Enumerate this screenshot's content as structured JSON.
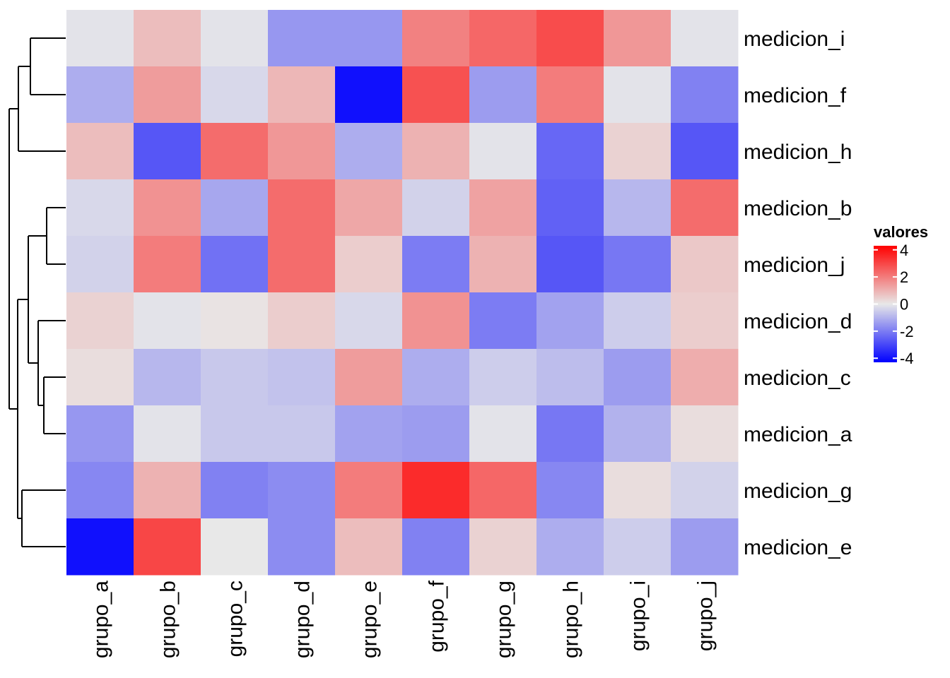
{
  "chart_data": {
    "type": "heatmap",
    "title": "",
    "xlabel": "",
    "ylabel": "",
    "columns": [
      "grupo_a",
      "grupo_b",
      "grupo_c",
      "grupo_d",
      "grupo_e",
      "grupo_f",
      "grupo_g",
      "grupo_h",
      "grupo_i",
      "grupo_j"
    ],
    "rows": [
      "medicion_i",
      "medicion_f",
      "medicion_h",
      "medicion_b",
      "medicion_j",
      "medicion_d",
      "medicion_c",
      "medicion_a",
      "medicion_g",
      "medicion_e"
    ],
    "values": [
      [
        -0.1,
        0.8,
        -0.1,
        -1.5,
        -1.5,
        1.9,
        2.4,
        2.9,
        1.5,
        -0.1
      ],
      [
        -1.1,
        1.4,
        -0.3,
        0.9,
        -4.0,
        2.8,
        -1.4,
        2.0,
        -0.1,
        -1.9
      ],
      [
        0.8,
        -2.7,
        2.3,
        1.5,
        -1.1,
        1.0,
        -0.1,
        -2.4,
        0.4,
        -2.7
      ],
      [
        -0.3,
        1.6,
        -1.2,
        2.3,
        1.2,
        -0.4,
        1.3,
        -2.5,
        -0.9,
        2.3
      ],
      [
        -0.4,
        2.0,
        -2.2,
        2.3,
        0.5,
        -2.0,
        1.0,
        -2.7,
        -2.1,
        0.6
      ],
      [
        0.4,
        -0.1,
        0.1,
        0.5,
        -0.3,
        1.6,
        -2.0,
        -1.3,
        -0.5,
        0.5
      ],
      [
        0.2,
        -0.9,
        -0.6,
        -0.7,
        1.4,
        -1.1,
        -0.5,
        -0.8,
        -1.4,
        1.1
      ],
      [
        -1.5,
        -0.1,
        -0.6,
        -0.6,
        -1.3,
        -1.4,
        -0.1,
        -2.1,
        -1.0,
        0.2
      ],
      [
        -1.8,
        1.0,
        -1.9,
        -1.7,
        2.0,
        3.5,
        2.4,
        -1.8,
        0.2,
        -0.4
      ],
      [
        -4.0,
        3.0,
        0.0,
        -1.7,
        0.8,
        -1.9,
        0.4,
        -1.1,
        -0.5,
        -1.4
      ]
    ],
    "legend": {
      "title": "valores",
      "ticks": [
        "4",
        "2",
        "0",
        "-2",
        "-4"
      ],
      "tick_values": [
        4,
        2,
        0,
        -2,
        -4
      ],
      "range": [
        -4.3,
        4.3
      ],
      "placement": "right"
    },
    "colors": {
      "low": "#0000ff",
      "mid": "#e8e8e8",
      "high": "#ff0000"
    },
    "row_dendrogram": "left",
    "grid": false
  }
}
